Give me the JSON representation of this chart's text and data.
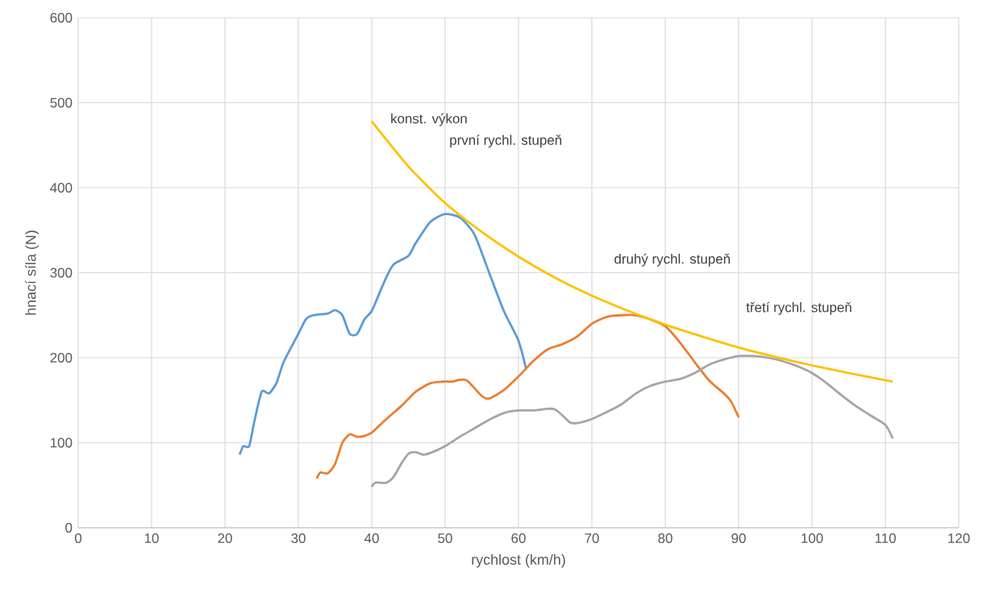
{
  "chart_data": {
    "type": "line",
    "xlabel": "rychlost (km/h)",
    "ylabel": "hnací síla (N)",
    "xlim": [
      0,
      120
    ],
    "xticks": [
      0,
      10,
      20,
      30,
      40,
      50,
      60,
      70,
      80,
      90,
      100,
      110,
      120
    ],
    "ylim": [
      0,
      600
    ],
    "yticks": [
      0,
      100,
      200,
      300,
      400,
      500,
      600
    ],
    "grid": true,
    "marker": "none",
    "line_style": "solid",
    "series": [
      {
        "color": "#5b9bd5",
        "x": [
          22,
          22.5,
          23.3,
          24,
          25,
          26,
          27,
          28,
          30,
          31,
          32,
          34,
          35,
          36,
          37,
          38,
          39,
          40,
          41,
          42,
          43,
          45,
          46,
          48,
          50,
          52,
          54,
          56,
          58,
          60,
          61
        ],
        "values": [
          86,
          96,
          96,
          125,
          160,
          158,
          170,
          195,
          228,
          245,
          250,
          252,
          256,
          250,
          228,
          228,
          245,
          255,
          275,
          295,
          310,
          320,
          335,
          360,
          369,
          365,
          345,
          300,
          255,
          220,
          188
        ]
      },
      {
        "color": "#ed7d31",
        "x": [
          32.5,
          33,
          34,
          35,
          36,
          37,
          38,
          39,
          40,
          42,
          44,
          46,
          48,
          50,
          51,
          52,
          53,
          55,
          56,
          58,
          60,
          62,
          64,
          66,
          68,
          70,
          72,
          74,
          76,
          78,
          80,
          82,
          84,
          86,
          88,
          89,
          90
        ],
        "values": [
          58,
          65,
          64,
          75,
          100,
          110,
          107,
          108,
          112,
          128,
          143,
          160,
          170,
          172,
          172,
          174,
          173,
          155,
          152,
          162,
          178,
          196,
          210,
          216,
          225,
          240,
          248,
          250,
          250,
          245,
          237,
          218,
          195,
          173,
          158,
          148,
          130
        ]
      },
      {
        "color": "#a5a5a5",
        "x": [
          40,
          40.5,
          42,
          43,
          44,
          45,
          46,
          47,
          48,
          50,
          52,
          54,
          56,
          58,
          60,
          62,
          64,
          65,
          66,
          67,
          68,
          70,
          72,
          74,
          76,
          78,
          80,
          82,
          84,
          86,
          88,
          90,
          92,
          94,
          96,
          98,
          100,
          102,
          104,
          106,
          108,
          110,
          111
        ],
        "values": [
          48,
          53,
          53,
          60,
          75,
          87,
          89,
          86,
          88,
          96,
          107,
          117,
          127,
          135,
          138,
          138,
          140,
          139,
          132,
          124,
          123,
          128,
          136,
          145,
          158,
          167,
          172,
          175,
          182,
          192,
          198,
          202,
          202,
          200,
          196,
          190,
          182,
          170,
          156,
          143,
          132,
          121,
          105
        ]
      },
      {
        "color": "#ffc000",
        "x": [
          40,
          45,
          50,
          55,
          60,
          65,
          70,
          75,
          80,
          85,
          90,
          95,
          100,
          105,
          111
        ],
        "values": [
          478,
          425,
          382,
          348,
          319,
          294,
          273,
          255,
          239,
          225,
          212,
          201,
          191,
          182,
          172
        ]
      }
    ],
    "annotations": [
      "konst. výkon",
      "první rychl. stupeň",
      "druhý rychl. stupeň",
      "třetí rychl. stupeň"
    ]
  }
}
